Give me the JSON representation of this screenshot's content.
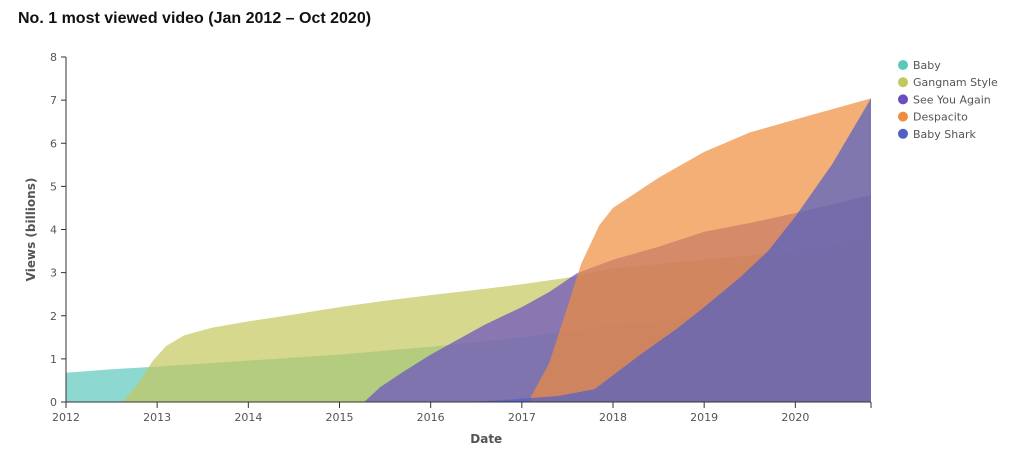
{
  "chart_data": {
    "type": "area",
    "title": "No. 1 most viewed video (Jan 2012 – Oct 2020)",
    "xlabel": "Date",
    "ylabel": "Views (billions)",
    "xlim": [
      2012,
      2020.83
    ],
    "ylim": [
      0,
      8
    ],
    "x_ticks": [
      "2012",
      "2013",
      "2014",
      "2015",
      "2016",
      "2017",
      "2018",
      "2019",
      "2020"
    ],
    "y_ticks": [
      "0",
      "1",
      "2",
      "3",
      "4",
      "5",
      "6",
      "7",
      "8"
    ],
    "legend_position": "top-right",
    "grid": false,
    "series": [
      {
        "name": "Baby",
        "color": "#5cc8bc",
        "points": [
          [
            2012.0,
            0.68
          ],
          [
            2012.5,
            0.76
          ],
          [
            2013.0,
            0.82
          ],
          [
            2014.0,
            0.96
          ],
          [
            2015.0,
            1.1
          ],
          [
            2016.0,
            1.28
          ],
          [
            2017.0,
            1.5
          ],
          [
            2018.0,
            1.78
          ],
          [
            2019.0,
            2.0
          ],
          [
            2020.0,
            2.22
          ],
          [
            2020.83,
            2.38
          ]
        ]
      },
      {
        "name": "Gangnam Style",
        "color": "#c3c85c",
        "points": [
          [
            2012.62,
            0.0
          ],
          [
            2012.8,
            0.45
          ],
          [
            2012.95,
            0.95
          ],
          [
            2013.1,
            1.3
          ],
          [
            2013.3,
            1.55
          ],
          [
            2013.6,
            1.72
          ],
          [
            2014.0,
            1.87
          ],
          [
            2014.5,
            2.03
          ],
          [
            2015.0,
            2.2
          ],
          [
            2015.5,
            2.35
          ],
          [
            2016.0,
            2.48
          ],
          [
            2016.5,
            2.6
          ],
          [
            2017.0,
            2.73
          ],
          [
            2017.5,
            2.88
          ],
          [
            2018.0,
            3.1
          ],
          [
            2019.0,
            3.3
          ],
          [
            2020.0,
            3.5
          ],
          [
            2020.83,
            3.8
          ]
        ]
      },
      {
        "name": "See You Again",
        "color": "#6a4ec0",
        "points": [
          [
            2015.27,
            0.0
          ],
          [
            2015.45,
            0.35
          ],
          [
            2015.7,
            0.7
          ],
          [
            2016.0,
            1.1
          ],
          [
            2016.3,
            1.45
          ],
          [
            2016.6,
            1.8
          ],
          [
            2017.0,
            2.2
          ],
          [
            2017.3,
            2.55
          ],
          [
            2017.6,
            2.98
          ],
          [
            2018.0,
            3.3
          ],
          [
            2018.5,
            3.6
          ],
          [
            2019.0,
            3.95
          ],
          [
            2019.5,
            4.15
          ],
          [
            2020.0,
            4.38
          ],
          [
            2020.83,
            4.8
          ]
        ]
      },
      {
        "name": "Despacito",
        "color": "#ef8d3d",
        "points": [
          [
            2017.1,
            0.12
          ],
          [
            2017.3,
            0.9
          ],
          [
            2017.5,
            2.2
          ],
          [
            2017.65,
            3.2
          ],
          [
            2017.85,
            4.1
          ],
          [
            2018.0,
            4.5
          ],
          [
            2018.5,
            5.2
          ],
          [
            2019.0,
            5.8
          ],
          [
            2019.5,
            6.25
          ],
          [
            2020.0,
            6.55
          ],
          [
            2020.83,
            7.04
          ]
        ]
      },
      {
        "name": "Baby Shark",
        "color": "#4e60c8",
        "points": [
          [
            2016.45,
            0.0
          ],
          [
            2016.9,
            0.06
          ],
          [
            2017.4,
            0.14
          ],
          [
            2017.8,
            0.3
          ],
          [
            2018.0,
            0.62
          ],
          [
            2018.3,
            1.1
          ],
          [
            2018.7,
            1.7
          ],
          [
            2019.0,
            2.2
          ],
          [
            2019.4,
            2.9
          ],
          [
            2019.7,
            3.5
          ],
          [
            2020.0,
            4.3
          ],
          [
            2020.4,
            5.5
          ],
          [
            2020.83,
            7.04
          ]
        ]
      }
    ]
  }
}
